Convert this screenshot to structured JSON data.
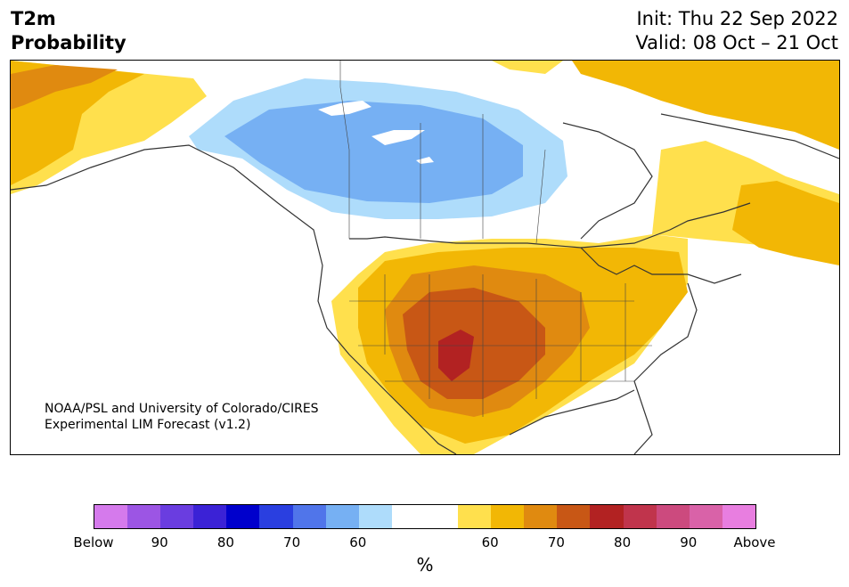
{
  "header": {
    "title_line1": "T2m",
    "title_line2": "Probability",
    "init": "Init: Thu 22 Sep 2022",
    "valid": "Valid: 08 Oct – 21 Oct"
  },
  "credit": {
    "line1": "NOAA/PSL and University of Colorado/CIRES",
    "line2": "Experimental LIM Forecast (v1.2)"
  },
  "colorbar": {
    "colors": [
      "#d57aec",
      "#9c55e4",
      "#6a3de0",
      "#3b22d6",
      "#0000cc",
      "#2a3fe0",
      "#5075ea",
      "#76b0f3",
      "#aedcfb",
      "#ffffff",
      "#ffffff",
      "#ffe04d",
      "#f2b705",
      "#e08a10",
      "#c85715",
      "#b22222",
      "#c0344c",
      "#cc4a7e",
      "#d962a8",
      "#e87ee0"
    ],
    "ticks": [
      "Below",
      "90",
      "80",
      "70",
      "60",
      "60",
      "70",
      "80",
      "90",
      "Above"
    ],
    "unit": "%"
  },
  "map_colors": {
    "light_blue": "#aedcfb",
    "mid_blue": "#76b0f3",
    "yellow": "#ffe04d",
    "gold": "#f2b705",
    "orange": "#e08a10",
    "dark_orange": "#c85715",
    "red": "#b22222",
    "border": "#333333"
  }
}
